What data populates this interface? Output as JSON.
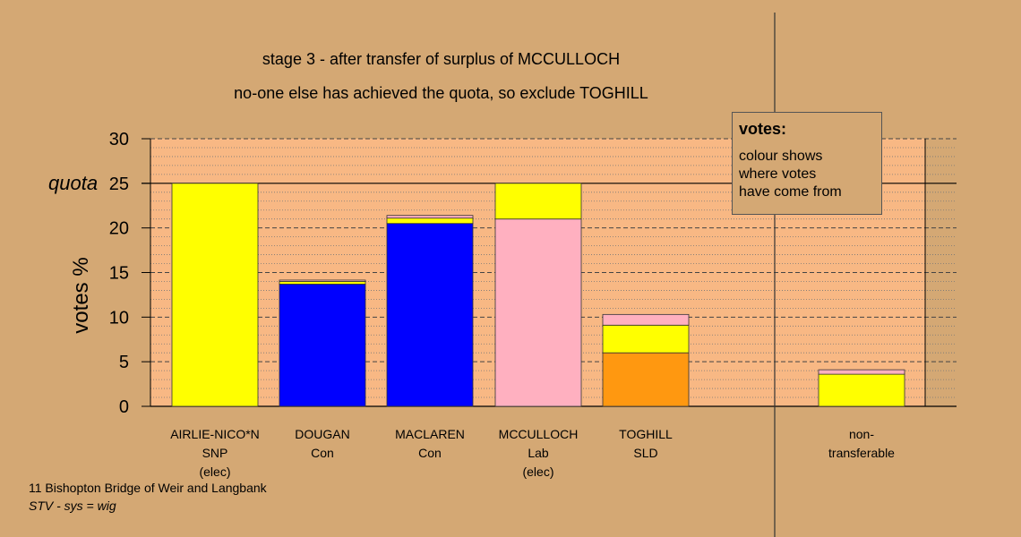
{
  "title_line1": "stage 3 - after transfer of surplus of MCCULLOCH",
  "title_line2": "no-one else has achieved the quota, so exclude TOGHILL",
  "legend": {
    "title": "votes:",
    "lines": [
      "colour shows",
      "where votes",
      "have come from"
    ]
  },
  "footer": {
    "line1": "11 Bishopton Bridge of Weir and Langbank",
    "line2": "STV - sys = wig"
  },
  "colors": {
    "background": "#D4A874",
    "plot_background": "#F8B884",
    "SNP": "#FFFF00",
    "Con": "#0000FF",
    "Lab": "#FFB0C0",
    "SLD": "#FF9810"
  },
  "chart_data": {
    "type": "bar",
    "stacked": true,
    "ylabel": "votes %",
    "ylim": [
      0,
      30
    ],
    "yticks": [
      0,
      5,
      10,
      15,
      20,
      25,
      30
    ],
    "quota": 25,
    "quota_label": "quota",
    "grid": true,
    "candidates": [
      {
        "label": [
          "AIRLIE-NICO*N",
          "SNP",
          "(elec)"
        ],
        "segments": [
          {
            "color": "#FFFF00",
            "value": 25.0
          }
        ]
      },
      {
        "label": [
          "DOUGAN",
          "Con"
        ],
        "segments": [
          {
            "color": "#0000FF",
            "value": 13.7
          },
          {
            "color": "#FFFF00",
            "value": 0.3
          },
          {
            "color": "#FFB0C0",
            "value": 0.15
          }
        ]
      },
      {
        "label": [
          "MACLAREN",
          "Con"
        ],
        "segments": [
          {
            "color": "#0000FF",
            "value": 20.5
          },
          {
            "color": "#FFFF00",
            "value": 0.6
          },
          {
            "color": "#FFB0C0",
            "value": 0.3
          }
        ]
      },
      {
        "label": [
          "MCCULLOCH",
          "Lab",
          "(elec)"
        ],
        "segments": [
          {
            "color": "#FFB0C0",
            "value": 21.0
          },
          {
            "color": "#FFFF00",
            "value": 4.0
          }
        ]
      },
      {
        "label": [
          "TOGHILL",
          "SLD"
        ],
        "segments": [
          {
            "color": "#FF9810",
            "value": 6.0
          },
          {
            "color": "#FFFF00",
            "value": 3.1
          },
          {
            "color": "#FFB0C0",
            "value": 1.2
          }
        ]
      }
    ],
    "nontransferable": {
      "label": [
        "non-",
        "transferable"
      ],
      "segments": [
        {
          "color": "#FFFF00",
          "value": 3.6
        },
        {
          "color": "#FFB0C0",
          "value": 0.5
        }
      ]
    }
  }
}
